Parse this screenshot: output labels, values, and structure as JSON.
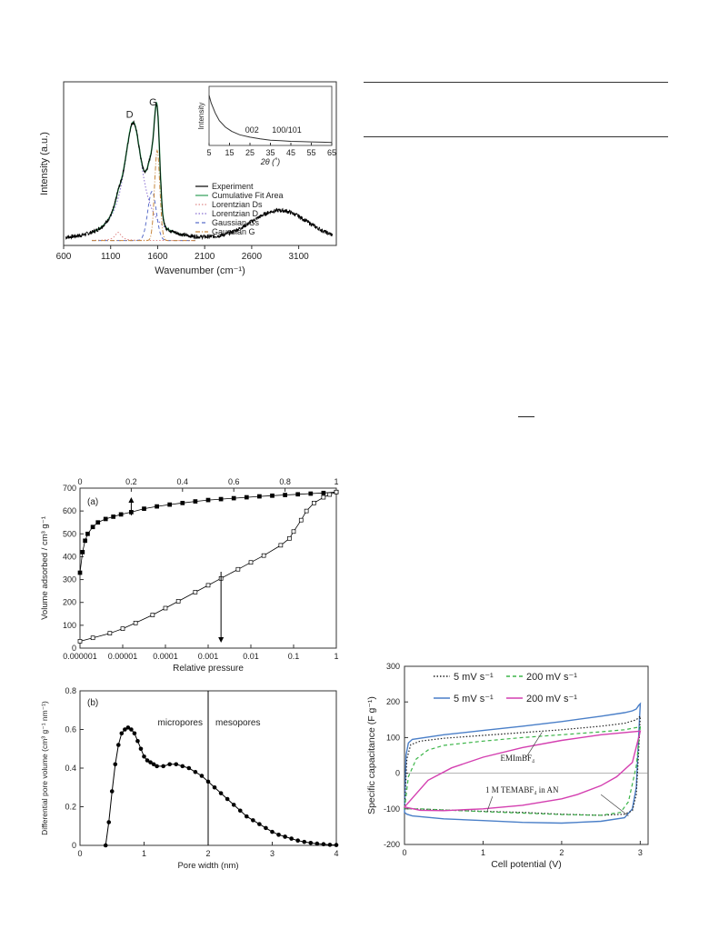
{
  "chart_data": [
    {
      "id": "raman",
      "type": "line",
      "xlabel": "Wavenumber (cm⁻¹)",
      "ylabel": "Intensity (a.u.)",
      "xlim": [
        600,
        3500
      ],
      "ylim": [
        0,
        1.0
      ],
      "xticks": [
        "600",
        "1100",
        "1600",
        "2100",
        "2600",
        "3100"
      ],
      "peak_labels": [
        {
          "label": "D",
          "x": 1350
        },
        {
          "label": "G",
          "x": 1600
        }
      ],
      "legend_position": "center-right",
      "legend": [
        {
          "name": "Experiment",
          "color": "#000000",
          "style": "solid"
        },
        {
          "name": "Cumulative Fit Area",
          "color": "#2e9e58",
          "style": "solid"
        },
        {
          "name": "Lorentzian Ds",
          "color": "#e08a8a",
          "style": "dotted"
        },
        {
          "name": "Lorentzian D",
          "color": "#8a6fd1",
          "style": "dotted"
        },
        {
          "name": "Gaussian Gs",
          "color": "#5b6fc9",
          "style": "dashed"
        },
        {
          "name": "Gaussian G",
          "color": "#c7873d",
          "style": "dashdot"
        }
      ],
      "peaks": [
        {
          "name": "Lorentzian D",
          "center": 1340,
          "height": 0.72,
          "width": 120
        },
        {
          "name": "Gaussian G",
          "center": 1595,
          "height": 0.55,
          "width": 28
        },
        {
          "name": "Gaussian Gs",
          "center": 1540,
          "height": 0.3,
          "width": 45
        },
        {
          "name": "Lorentzian Ds",
          "center": 1180,
          "height": 0.05,
          "width": 40
        },
        {
          "name": "2D band",
          "center": 2900,
          "height": 0.18,
          "width": 300
        }
      ],
      "baseline": 0.03,
      "inset": {
        "type": "line",
        "xlabel": "2θ (˚)",
        "ylabel": "Intensity",
        "xlim": [
          5,
          65
        ],
        "xticks": [
          "5",
          "15",
          "25",
          "35",
          "45",
          "55",
          "65"
        ],
        "annotations": [
          {
            "text": "002",
            "x": 26
          },
          {
            "text": "100/101",
            "x": 43
          }
        ],
        "x": [
          5,
          6,
          8,
          10,
          13,
          16,
          20,
          25,
          30,
          35,
          40,
          45,
          50,
          55,
          60,
          65
        ],
        "y": [
          0.85,
          0.72,
          0.55,
          0.42,
          0.31,
          0.24,
          0.18,
          0.14,
          0.11,
          0.09,
          0.08,
          0.07,
          0.065,
          0.06,
          0.055,
          0.05
        ]
      }
    },
    {
      "id": "isotherm",
      "type": "scatter",
      "panel_label": "(a)",
      "ylabel": "Volume adsorbed / cm³ g⁻¹",
      "xlabel_bottom": "Relative pressure",
      "ylim": [
        0,
        700
      ],
      "yticks": [
        "0",
        "100",
        "200",
        "300",
        "400",
        "500",
        "600",
        "700"
      ],
      "xticks_bottom": [
        "0.000001",
        "0.00001",
        "0.0001",
        "0.001",
        "0.01",
        "0.1",
        "1"
      ],
      "xticks_top": [
        "0",
        "0.2",
        "0.4",
        "0.6",
        "0.8",
        "1"
      ],
      "series": [
        {
          "marker": "filled-square",
          "axis": "top-linear",
          "x": [
            0.0,
            0.01,
            0.02,
            0.03,
            0.05,
            0.07,
            0.1,
            0.13,
            0.16,
            0.2,
            0.25,
            0.3,
            0.35,
            0.4,
            0.45,
            0.5,
            0.55,
            0.6,
            0.65,
            0.7,
            0.75,
            0.8,
            0.85,
            0.9,
            0.95,
            1.0
          ],
          "y": [
            330,
            420,
            470,
            500,
            530,
            550,
            565,
            575,
            585,
            595,
            610,
            620,
            628,
            635,
            642,
            648,
            652,
            656,
            660,
            664,
            667,
            670,
            673,
            676,
            679,
            683
          ]
        },
        {
          "marker": "open-square",
          "axis": "bottom-log",
          "x": [
            1e-06,
            2e-06,
            5e-06,
            1e-05,
            2e-05,
            5e-05,
            0.0001,
            0.0002,
            0.0005,
            0.001,
            0.002,
            0.005,
            0.01,
            0.02,
            0.05,
            0.08,
            0.1,
            0.15,
            0.2,
            0.3,
            0.5,
            0.7,
            1.0
          ],
          "y": [
            30,
            45,
            65,
            85,
            110,
            145,
            175,
            205,
            245,
            275,
            305,
            345,
            375,
            405,
            450,
            480,
            510,
            560,
            600,
            635,
            660,
            672,
            683
          ]
        }
      ],
      "arrows": [
        {
          "axis": "top-linear",
          "x": 0.2,
          "direction": "up"
        },
        {
          "axis": "bottom-log",
          "x": 0.002,
          "direction": "down"
        }
      ]
    },
    {
      "id": "psd",
      "type": "scatter",
      "panel_label": "(b)",
      "ylabel": "Differential pore volume (cm³ g⁻¹ nm⁻¹)",
      "xlabel": "Pore width (nm)",
      "xlim": [
        0,
        4
      ],
      "ylim": [
        0,
        0.8
      ],
      "xticks": [
        "0",
        "1",
        "2",
        "3",
        "4"
      ],
      "yticks": [
        "0",
        "0.2",
        "0.4",
        "0.6",
        "0.8"
      ],
      "divider_x": 2,
      "region_labels": [
        "micropores",
        "mesopores"
      ],
      "x": [
        0.4,
        0.45,
        0.5,
        0.55,
        0.6,
        0.65,
        0.7,
        0.75,
        0.8,
        0.85,
        0.9,
        0.95,
        1.0,
        1.05,
        1.1,
        1.15,
        1.2,
        1.3,
        1.4,
        1.5,
        1.6,
        1.7,
        1.8,
        1.9,
        2.0,
        2.1,
        2.2,
        2.3,
        2.4,
        2.5,
        2.6,
        2.7,
        2.8,
        2.9,
        3.0,
        3.1,
        3.2,
        3.3,
        3.4,
        3.5,
        3.6,
        3.7,
        3.8,
        3.9,
        4.0
      ],
      "y": [
        0.0,
        0.12,
        0.28,
        0.42,
        0.52,
        0.58,
        0.6,
        0.61,
        0.6,
        0.58,
        0.54,
        0.5,
        0.46,
        0.44,
        0.43,
        0.42,
        0.41,
        0.41,
        0.42,
        0.42,
        0.41,
        0.4,
        0.38,
        0.36,
        0.33,
        0.3,
        0.27,
        0.24,
        0.21,
        0.18,
        0.15,
        0.13,
        0.11,
        0.09,
        0.07,
        0.055,
        0.045,
        0.035,
        0.025,
        0.018,
        0.013,
        0.009,
        0.006,
        0.003,
        0.002
      ]
    },
    {
      "id": "cv",
      "type": "line",
      "xlabel": "Cell potential (V)",
      "ylabel": "Specific capacitance (F g⁻¹)",
      "xlim": [
        0,
        3.1
      ],
      "ylim": [
        -200,
        300
      ],
      "xticks": [
        "0",
        "1",
        "2",
        "3"
      ],
      "yticks": [
        "300",
        "200",
        "100",
        "0",
        "-100",
        "-200"
      ],
      "legend": [
        {
          "name": "5 mV s⁻¹",
          "color": "#222222",
          "style": "dotted"
        },
        {
          "name": "200 mV s⁻¹",
          "color": "#3db54a",
          "style": "dashed"
        },
        {
          "name": "5 mV s⁻¹",
          "color": "#4a7fc8",
          "style": "solid"
        },
        {
          "name": "200 mV s⁻¹",
          "color": "#d43fb0",
          "style": "solid"
        }
      ],
      "annotations": [
        "EMImBF₄",
        "1 M TEMABF₄ in AN"
      ],
      "series": [
        {
          "name": "blue 5 mV",
          "color": "#4a7fc8",
          "style": "solid",
          "x": [
            0,
            0.02,
            0.05,
            0.1,
            0.5,
            1.0,
            1.5,
            2.0,
            2.5,
            2.8,
            2.9,
            2.95,
            2.98,
            3.0,
            2.99,
            2.97,
            2.95,
            2.9,
            2.8,
            2.5,
            2.0,
            1.5,
            1.0,
            0.5,
            0.1,
            0.03,
            0.0
          ],
          "y": [
            -110,
            50,
            85,
            95,
            108,
            120,
            132,
            145,
            160,
            170,
            175,
            180,
            190,
            195,
            150,
            60,
            -40,
            -100,
            -125,
            -135,
            -140,
            -138,
            -133,
            -128,
            -120,
            -115,
            -110
          ]
        },
        {
          "name": "black 5 mV",
          "color": "#222222",
          "style": "dotted",
          "x": [
            0,
            0.03,
            0.08,
            0.2,
            0.5,
            1.0,
            1.5,
            2.0,
            2.5,
            2.8,
            2.95,
            3.0,
            2.98,
            2.95,
            2.9,
            2.8,
            2.5,
            2.0,
            1.5,
            1.0,
            0.5,
            0.1,
            0.0
          ],
          "y": [
            -100,
            40,
            80,
            90,
            98,
            106,
            114,
            122,
            132,
            140,
            150,
            160,
            60,
            -60,
            -105,
            -115,
            -118,
            -115,
            -110,
            -107,
            -103,
            -100,
            -100
          ]
        },
        {
          "name": "green 200 mV",
          "color": "#3db54a",
          "style": "dashed",
          "x": [
            0,
            0.05,
            0.15,
            0.3,
            0.5,
            1.0,
            1.5,
            2.0,
            2.5,
            2.8,
            2.95,
            3.0,
            2.95,
            2.85,
            2.75,
            2.5,
            2.0,
            1.5,
            1.0,
            0.5,
            0.2,
            0.0
          ],
          "y": [
            -100,
            -10,
            40,
            65,
            78,
            90,
            100,
            108,
            116,
            122,
            128,
            130,
            20,
            -80,
            -110,
            -118,
            -116,
            -112,
            -108,
            -103,
            -100,
            -100
          ]
        },
        {
          "name": "magenta 200 mV",
          "color": "#d43fb0",
          "style": "solid",
          "x": [
            0,
            0.3,
            0.6,
            1.0,
            1.5,
            2.0,
            2.5,
            3.0,
            2.9,
            2.7,
            2.5,
            2.2,
            2.0,
            1.5,
            1.0,
            0.5,
            0.2,
            0.0
          ],
          "y": [
            -95,
            -20,
            15,
            45,
            72,
            92,
            108,
            118,
            30,
            -10,
            -35,
            -60,
            -72,
            -90,
            -100,
            -105,
            -104,
            -95
          ]
        }
      ]
    }
  ],
  "right_column": {
    "underline_text": "__"
  }
}
